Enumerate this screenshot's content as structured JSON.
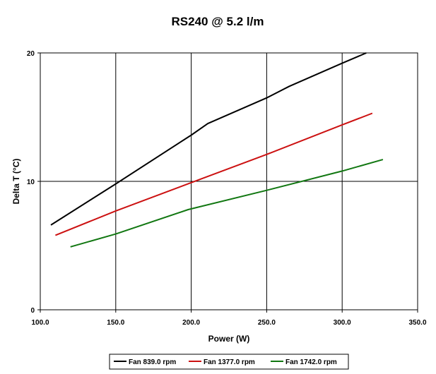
{
  "chart_data": {
    "type": "line",
    "title": "RS240 @ 5.2 l/m",
    "xlabel": "Power (W)",
    "ylabel": "Delta T (°C)",
    "xlim": [
      100,
      350
    ],
    "ylim": [
      0,
      20
    ],
    "xticks": [
      "100.0",
      "150.0",
      "200.0",
      "250.0",
      "300.0",
      "350.0"
    ],
    "yticks": [
      "0",
      "10",
      "20"
    ],
    "grid": true,
    "legend_position": "bottom",
    "series": [
      {
        "name": "Fan 839.0 rpm",
        "color": "#000000",
        "x": [
          107,
          150,
          200,
          211,
          250,
          265,
          300,
          316
        ],
        "y": [
          6.6,
          9.8,
          13.6,
          14.5,
          16.5,
          17.4,
          19.2,
          20.0
        ]
      },
      {
        "name": "Fan 1377.0 rpm",
        "color": "#cc1111",
        "x": [
          110,
          150,
          200,
          250,
          300,
          320
        ],
        "y": [
          5.8,
          7.7,
          9.9,
          12.1,
          14.4,
          15.3
        ]
      },
      {
        "name": "Fan 1742.0 rpm",
        "color": "#117711",
        "x": [
          120,
          150,
          198,
          250,
          300,
          327
        ],
        "y": [
          4.9,
          5.9,
          7.8,
          9.3,
          10.8,
          11.7
        ]
      }
    ]
  }
}
